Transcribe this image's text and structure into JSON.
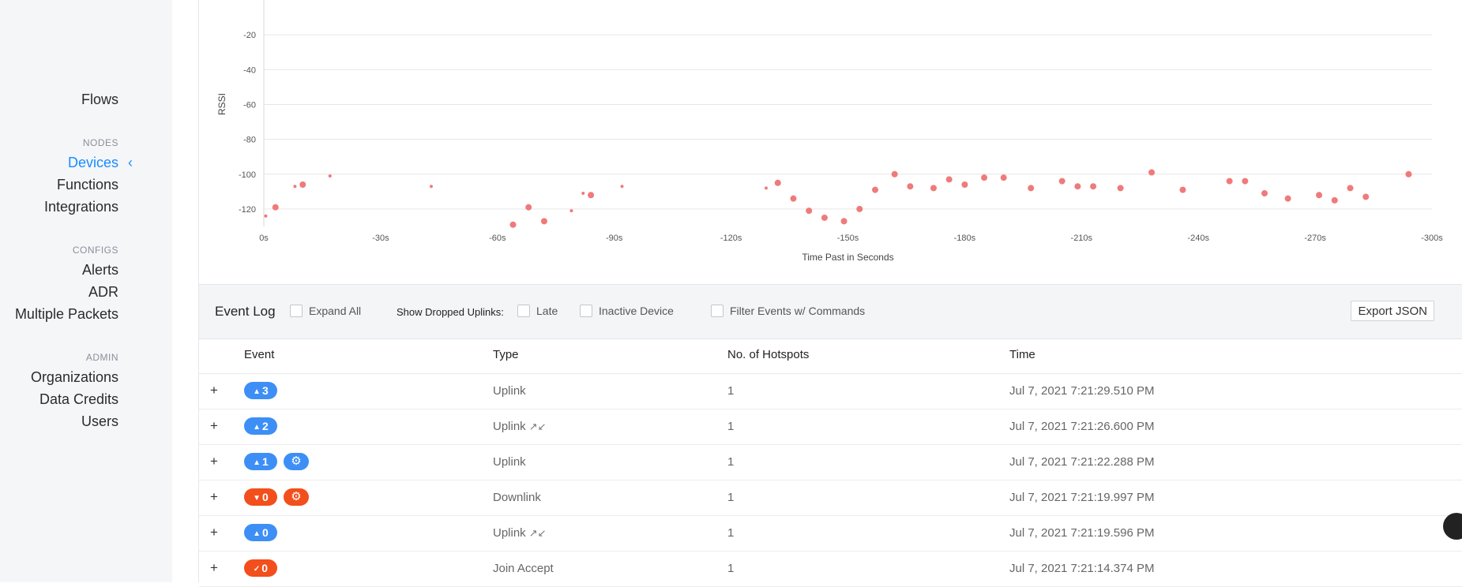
{
  "sidebar": {
    "items": [
      {
        "label": "Flows"
      },
      {
        "label": "Devices"
      },
      {
        "label": "Functions"
      },
      {
        "label": "Integrations"
      },
      {
        "label": "Alerts"
      },
      {
        "label": "ADR"
      },
      {
        "label": "Multiple Packets"
      },
      {
        "label": "Organizations"
      },
      {
        "label": "Data Credits"
      },
      {
        "label": "Users"
      }
    ],
    "sections": [
      "NODES",
      "CONFIGS",
      "ADMIN"
    ],
    "active_item": "Devices"
  },
  "chart_data": {
    "type": "scatter",
    "xlabel": "Time Past in Seconds",
    "ylabel": "RSSI",
    "xlim": [
      0,
      -300
    ],
    "ylim": [
      -130,
      0
    ],
    "x_ticks": [
      "0s",
      "-30s",
      "-60s",
      "-90s",
      "-120s",
      "-150s",
      "-180s",
      "-210s",
      "-240s",
      "-270s",
      "-300s"
    ],
    "y_ticks": [
      "-20",
      "-40",
      "-60",
      "-80",
      "-100",
      "-120"
    ],
    "color": "#f07a7a",
    "points": [
      {
        "x": -0.5,
        "y": -124,
        "s": 2
      },
      {
        "x": -3,
        "y": -119,
        "s": 4
      },
      {
        "x": -8,
        "y": -107,
        "s": 2
      },
      {
        "x": -10,
        "y": -106,
        "s": 4
      },
      {
        "x": -17,
        "y": -101,
        "s": 2
      },
      {
        "x": -43,
        "y": -107,
        "s": 2
      },
      {
        "x": -64,
        "y": -129,
        "s": 4
      },
      {
        "x": -68,
        "y": -119,
        "s": 4
      },
      {
        "x": -72,
        "y": -127,
        "s": 4
      },
      {
        "x": -79,
        "y": -121,
        "s": 2
      },
      {
        "x": -82,
        "y": -111,
        "s": 2
      },
      {
        "x": -84,
        "y": -112,
        "s": 4
      },
      {
        "x": -92,
        "y": -107,
        "s": 2
      },
      {
        "x": -129,
        "y": -108,
        "s": 2
      },
      {
        "x": -132,
        "y": -105,
        "s": 4
      },
      {
        "x": -136,
        "y": -114,
        "s": 4
      },
      {
        "x": -140,
        "y": -121,
        "s": 4
      },
      {
        "x": -144,
        "y": -125,
        "s": 4
      },
      {
        "x": -149,
        "y": -127,
        "s": 4
      },
      {
        "x": -153,
        "y": -120,
        "s": 4
      },
      {
        "x": -157,
        "y": -109,
        "s": 4
      },
      {
        "x": -162,
        "y": -100,
        "s": 4
      },
      {
        "x": -166,
        "y": -107,
        "s": 4
      },
      {
        "x": -172,
        "y": -108,
        "s": 4
      },
      {
        "x": -176,
        "y": -103,
        "s": 4
      },
      {
        "x": -180,
        "y": -106,
        "s": 4
      },
      {
        "x": -185,
        "y": -102,
        "s": 4
      },
      {
        "x": -190,
        "y": -102,
        "s": 4
      },
      {
        "x": -197,
        "y": -108,
        "s": 4
      },
      {
        "x": -205,
        "y": -104,
        "s": 4
      },
      {
        "x": -209,
        "y": -107,
        "s": 4
      },
      {
        "x": -213,
        "y": -107,
        "s": 4
      },
      {
        "x": -220,
        "y": -108,
        "s": 4
      },
      {
        "x": -228,
        "y": -99,
        "s": 4
      },
      {
        "x": -236,
        "y": -109,
        "s": 4
      },
      {
        "x": -248,
        "y": -104,
        "s": 4
      },
      {
        "x": -252,
        "y": -104,
        "s": 4
      },
      {
        "x": -257,
        "y": -111,
        "s": 4
      },
      {
        "x": -263,
        "y": -114,
        "s": 4
      },
      {
        "x": -271,
        "y": -112,
        "s": 4
      },
      {
        "x": -275,
        "y": -115,
        "s": 4
      },
      {
        "x": -279,
        "y": -108,
        "s": 4
      },
      {
        "x": -283,
        "y": -113,
        "s": 4
      },
      {
        "x": -294,
        "y": -100,
        "s": 4
      }
    ]
  },
  "event_log": {
    "title": "Event Log",
    "expand_all": "Expand All",
    "show_dropped_label": "Show Dropped Uplinks:",
    "late": "Late",
    "inactive_device": "Inactive Device",
    "filter_commands": "Filter Events w/ Commands",
    "export_button": "Export JSON"
  },
  "table": {
    "headers": {
      "event": "Event",
      "type": "Type",
      "hotspots": "No. of Hotspots",
      "time": "Time"
    },
    "rows": [
      {
        "badge": "3",
        "dir": "up",
        "type": "Uplink",
        "hotspots": "1",
        "time": "Jul 7, 2021 7:21:29.510 PM"
      },
      {
        "badge": "2",
        "dir": "up",
        "type": "Uplink",
        "hotspots": "1",
        "time": "Jul 7, 2021 7:21:26.600 PM"
      },
      {
        "badge": "1",
        "dir": "up",
        "type": "Uplink",
        "hotspots": "1",
        "time": "Jul 7, 2021 7:21:22.288 PM"
      },
      {
        "badge": "0",
        "dir": "down",
        "type": "Downlink",
        "hotspots": "1",
        "time": "Jul 7, 2021 7:21:19.997 PM"
      },
      {
        "badge": "0",
        "dir": "up",
        "type": "Uplink",
        "hotspots": "1",
        "time": "Jul 7, 2021 7:21:19.596 PM"
      },
      {
        "badge": "0",
        "dir": "join",
        "type": "Join Accept",
        "hotspots": "1",
        "time": "Jul 7, 2021 7:21:14.374 PM"
      }
    ]
  },
  "colors": {
    "accent": "#1a8cff",
    "uplink": "#3d8ff5",
    "downlink": "#f24f1c",
    "point": "#f07a7a"
  }
}
